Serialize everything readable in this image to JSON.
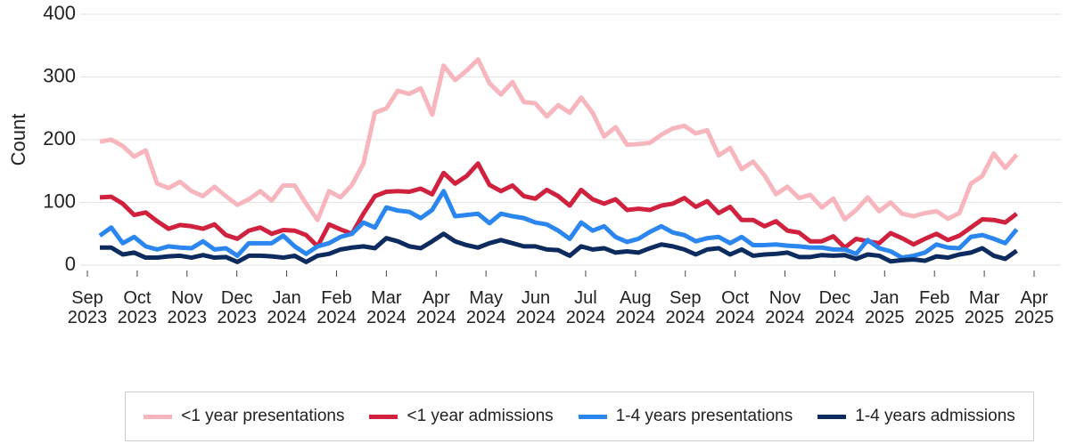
{
  "chart_data": {
    "type": "line",
    "y_label": "Count",
    "x": [
      0.25,
      0.48,
      0.71,
      0.94,
      1.17,
      1.4,
      1.63,
      1.86,
      2.09,
      2.32,
      2.55,
      2.78,
      3.01,
      3.24,
      3.47,
      3.7,
      3.93,
      4.16,
      4.39,
      4.62,
      4.85,
      5.08,
      5.31,
      5.54,
      5.77,
      6,
      6.23,
      6.46,
      6.69,
      6.92,
      7.15,
      7.38,
      7.61,
      7.84,
      8.07,
      8.3,
      8.53,
      8.76,
      8.99,
      9.22,
      9.45,
      9.68,
      9.91,
      10.14,
      10.37,
      10.6,
      10.83,
      11.06,
      11.29,
      11.52,
      11.75,
      11.98,
      12.21,
      12.44,
      12.67,
      12.9,
      13.13,
      13.36,
      13.59,
      13.82,
      14.05,
      14.28,
      14.51,
      14.74,
      14.97,
      15.2,
      15.43,
      15.66,
      15.89,
      16.12,
      16.35,
      16.58,
      16.81,
      17.04,
      17.27,
      17.5,
      17.73,
      17.96,
      18.19,
      18.42,
      18.65
    ],
    "series": [
      {
        "name": "<1 year presentations",
        "color": "#f7b6bd",
        "values": [
          197,
          200,
          190,
          173,
          183,
          130,
          123,
          133,
          118,
          110,
          125,
          110,
          96,
          105,
          118,
          103,
          127,
          127,
          98,
          72,
          118,
          108,
          128,
          162,
          243,
          250,
          278,
          273,
          282,
          240,
          318,
          295,
          310,
          328,
          290,
          272,
          292,
          260,
          258,
          237,
          255,
          243,
          267,
          243,
          205,
          220,
          192,
          193,
          195,
          208,
          218,
          222,
          210,
          215,
          175,
          187,
          153,
          165,
          143,
          113,
          125,
          107,
          112,
          92,
          106,
          73,
          88,
          108,
          86,
          100,
          82,
          78,
          83,
          86,
          74,
          83,
          130,
          142,
          178,
          155,
          176
        ]
      },
      {
        "name": "<1 year admissions",
        "color": "#d0223f",
        "values": [
          108,
          109,
          98,
          80,
          84,
          70,
          58,
          64,
          62,
          58,
          65,
          48,
          42,
          55,
          60,
          50,
          56,
          55,
          48,
          30,
          65,
          57,
          50,
          82,
          110,
          117,
          118,
          117,
          122,
          113,
          147,
          130,
          142,
          162,
          128,
          118,
          127,
          110,
          106,
          120,
          110,
          95,
          120,
          105,
          98,
          105,
          88,
          90,
          88,
          95,
          98,
          107,
          93,
          102,
          83,
          93,
          72,
          72,
          62,
          70,
          55,
          52,
          38,
          38,
          46,
          28,
          42,
          38,
          35,
          51,
          43,
          33,
          42,
          50,
          40,
          47,
          60,
          73,
          72,
          68,
          82
        ]
      },
      {
        "name": "1-4 years presentations",
        "color": "#2b86f0",
        "values": [
          47,
          60,
          35,
          45,
          30,
          25,
          30,
          28,
          27,
          38,
          25,
          27,
          15,
          35,
          35,
          35,
          47,
          30,
          18,
          30,
          35,
          45,
          50,
          68,
          60,
          92,
          87,
          85,
          75,
          88,
          118,
          78,
          80,
          82,
          67,
          82,
          78,
          75,
          68,
          65,
          55,
          42,
          68,
          55,
          62,
          45,
          37,
          42,
          53,
          62,
          52,
          48,
          38,
          43,
          45,
          35,
          45,
          32,
          32,
          33,
          31,
          30,
          28,
          28,
          25,
          25,
          18,
          40,
          27,
          22,
          12,
          15,
          20,
          33,
          28,
          27,
          45,
          48,
          42,
          35,
          57
        ]
      },
      {
        "name": "1-4 years admissions",
        "color": "#0d2b5e",
        "values": [
          28,
          28,
          17,
          20,
          12,
          12,
          14,
          15,
          12,
          16,
          12,
          13,
          5,
          15,
          15,
          14,
          12,
          15,
          5,
          15,
          18,
          25,
          28,
          30,
          27,
          43,
          38,
          30,
          27,
          38,
          50,
          38,
          32,
          28,
          35,
          40,
          35,
          30,
          30,
          25,
          24,
          15,
          30,
          25,
          27,
          20,
          22,
          20,
          27,
          33,
          30,
          25,
          17,
          25,
          27,
          17,
          25,
          15,
          17,
          18,
          20,
          13,
          13,
          16,
          15,
          16,
          10,
          17,
          15,
          6,
          8,
          9,
          7,
          14,
          12,
          17,
          20,
          27,
          15,
          10,
          23
        ]
      }
    ],
    "xlim": [
      0,
      19
    ],
    "xticks": [
      {
        "value": 0,
        "label": "Sep\n2023"
      },
      {
        "value": 1,
        "label": "Oct\n2023"
      },
      {
        "value": 2,
        "label": "Nov\n2023"
      },
      {
        "value": 3,
        "label": "Dec\n2023"
      },
      {
        "value": 4,
        "label": "Jan\n2024"
      },
      {
        "value": 5,
        "label": "Feb\n2024"
      },
      {
        "value": 6,
        "label": "Mar\n2024"
      },
      {
        "value": 7,
        "label": "Apr\n2024"
      },
      {
        "value": 8,
        "label": "May\n2024"
      },
      {
        "value": 9,
        "label": "Jun\n2024"
      },
      {
        "value": 10,
        "label": "Jul\n2024"
      },
      {
        "value": 11,
        "label": "Aug\n2024"
      },
      {
        "value": 12,
        "label": "Sep\n2024"
      },
      {
        "value": 13,
        "label": "Oct\n2024"
      },
      {
        "value": 14,
        "label": "Nov\n2024"
      },
      {
        "value": 15,
        "label": "Dec\n2024"
      },
      {
        "value": 16,
        "label": "Jan\n2025"
      },
      {
        "value": 17,
        "label": "Feb\n2025"
      },
      {
        "value": 18,
        "label": "Mar\n2025"
      },
      {
        "value": 19,
        "label": "Apr\n2025"
      }
    ],
    "ylim": [
      0,
      400
    ],
    "yticks": [
      0,
      100,
      200,
      300,
      400
    ],
    "grid": true,
    "legend": "bottom"
  }
}
